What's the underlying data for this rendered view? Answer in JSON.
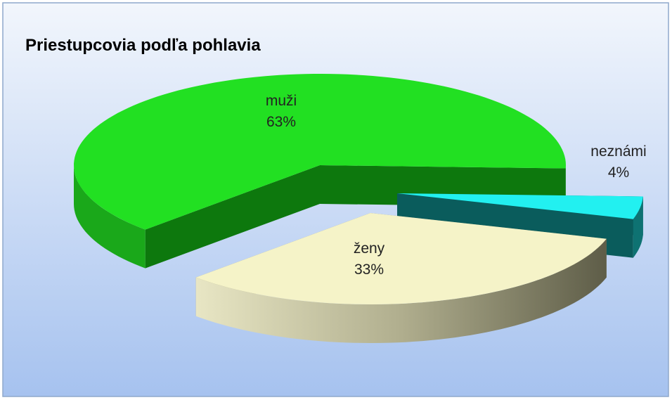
{
  "chart_data": {
    "type": "pie3d",
    "title": "Priestupcovia podľa pohlavia",
    "categories": [
      "muži",
      "ženy",
      "neznámi"
    ],
    "values": [
      63,
      33,
      4
    ],
    "value_labels": [
      "63%",
      "33%",
      "4%"
    ],
    "colors": [
      "#22e022",
      "#f5f3c8",
      "#22f0f0"
    ]
  }
}
